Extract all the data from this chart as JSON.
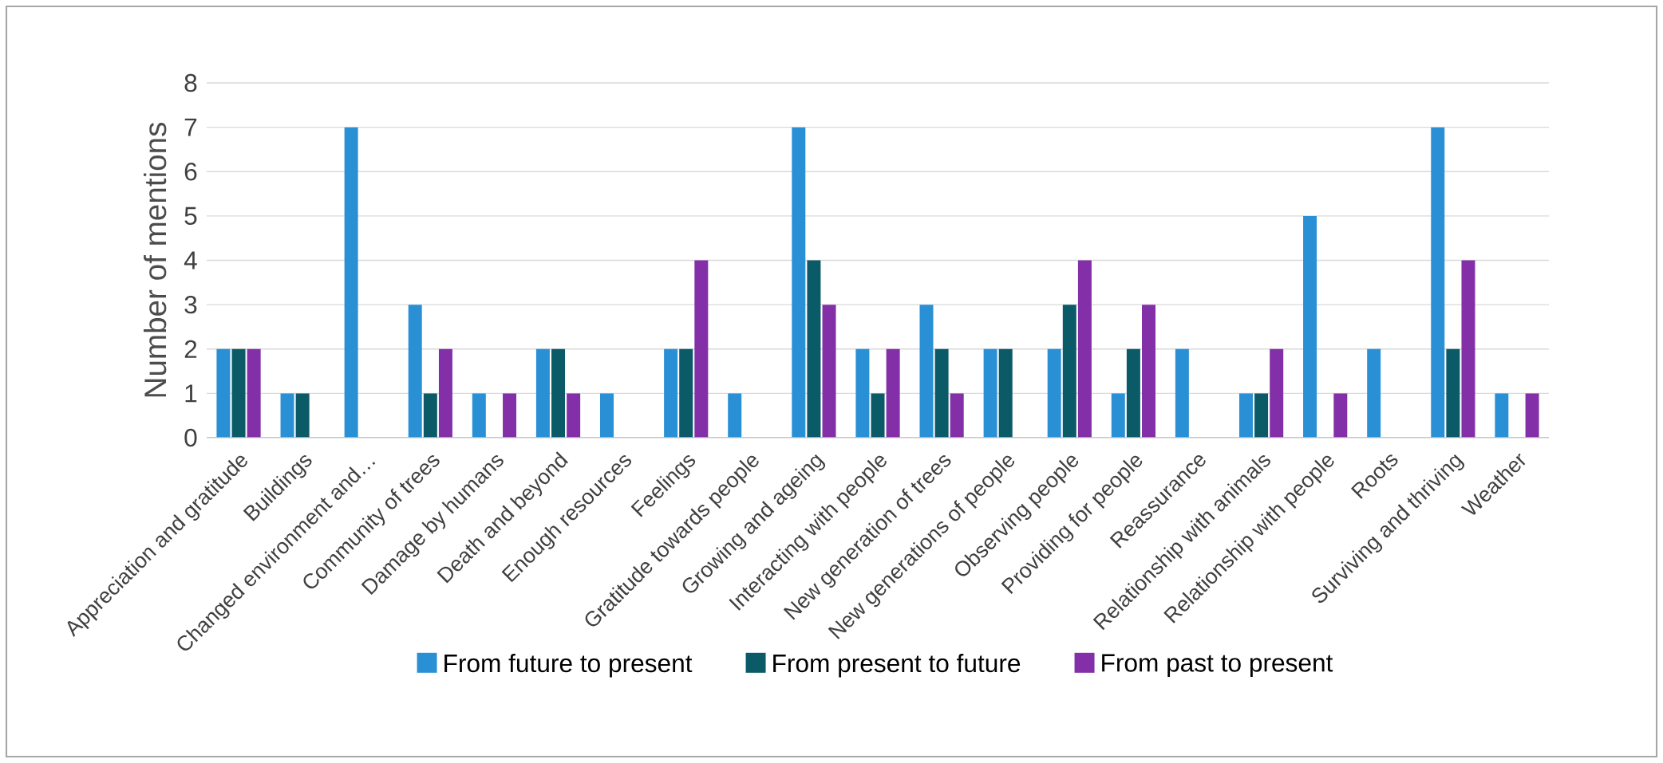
{
  "chart_data": {
    "type": "bar",
    "ylabel": "Number of mentions",
    "categories": [
      "Appreciation and gratitude",
      "Buildings",
      "Changed environment and…",
      "Community of trees",
      "Damage by humans",
      "Death and beyond",
      "Enough resources",
      "Feelings",
      "Gratitude towards people",
      "Growing and ageing",
      "Interacting with people",
      "New generation of trees",
      "New generations of people",
      "Observing people",
      "Providing for people",
      "Reassurance",
      "Relationship with animals",
      "Relationship with people",
      "Roots",
      "Surviving and thriving",
      "Weather"
    ],
    "series": [
      {
        "name": "From future to present",
        "color": "#2a90d6",
        "values": [
          2,
          1,
          7,
          3,
          1,
          2,
          1,
          2,
          1,
          7,
          2,
          3,
          2,
          2,
          1,
          2,
          1,
          5,
          2,
          7,
          1
        ]
      },
      {
        "name": "From present to future",
        "color": "#0b5a68",
        "values": [
          2,
          1,
          0,
          1,
          0,
          2,
          0,
          2,
          0,
          4,
          1,
          2,
          2,
          3,
          2,
          0,
          1,
          0,
          0,
          2,
          0
        ]
      },
      {
        "name": "From past to present",
        "color": "#8330a8",
        "values": [
          2,
          0,
          0,
          2,
          1,
          1,
          0,
          4,
          0,
          3,
          2,
          1,
          0,
          4,
          3,
          0,
          2,
          1,
          0,
          4,
          1
        ]
      }
    ],
    "ylim": [
      0,
      8
    ],
    "yticks": [
      0,
      1,
      2,
      3,
      4,
      5,
      6,
      7,
      8
    ],
    "grid": "y",
    "legend": "bottom"
  }
}
